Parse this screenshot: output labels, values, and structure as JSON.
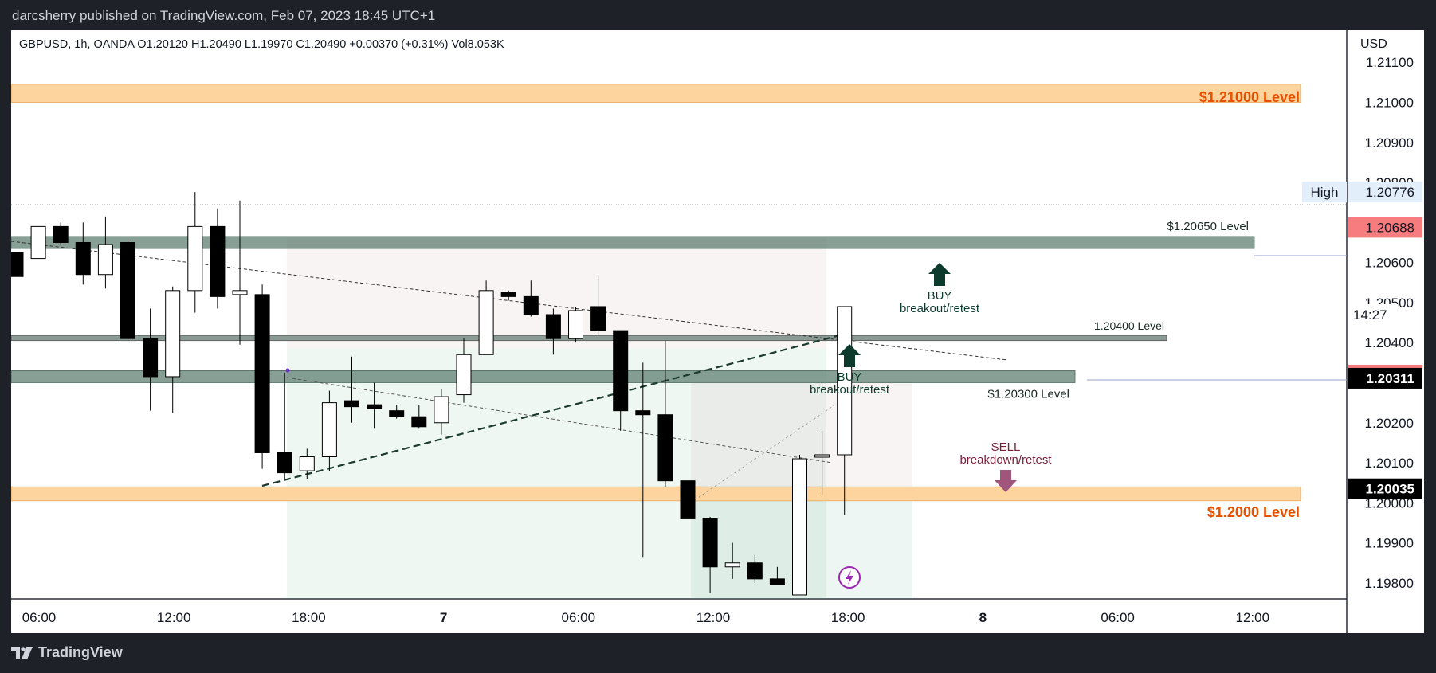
{
  "header": {
    "publisher_line": "darcsherry published on TradingView.com, Feb 07, 2023 18:45 UTC+1"
  },
  "footer": {
    "brand": "TradingView"
  },
  "colors": {
    "bull_candle": "#ffffff",
    "bear_candle": "#000000",
    "orange_zone": "#fdd49e",
    "green_zone": "#5f7f72",
    "buy_arrow": "#0c3b2e",
    "sell_arrow": "#a0557b",
    "orange_label": "#e65100",
    "high_line": "#9aa0a6",
    "price_red": "#f77c80"
  },
  "chart_data": {
    "type": "candlestick",
    "symbol_line": "GBPUSD, 1h, OANDA  O1.20120  H1.20490  L1.19970  C1.20490  +0.00370 (+0.31%)  Vol8.053K",
    "currency": "USD",
    "y_range": [
      1.1976,
      1.2118
    ],
    "y_ticks": [
      "1.21100",
      "1.21000",
      "1.20900",
      "1.20800",
      "1.20600",
      "1.20500",
      "1.20400",
      "1.20200",
      "1.20100",
      "1.20000",
      "1.19900",
      "1.19800"
    ],
    "x_ticks": [
      "06:00",
      "12:00",
      "18:00",
      "7",
      "06:00",
      "12:00",
      "18:00",
      "8",
      "06:00",
      "12:00"
    ],
    "candles": [
      {
        "o": 1.20625,
        "h": 1.20625,
        "l": 1.20565,
        "c": 1.20565
      },
      {
        "o": 1.2061,
        "h": 1.2069,
        "l": 1.2061,
        "c": 1.2069
      },
      {
        "o": 1.2069,
        "h": 1.207,
        "l": 1.20645,
        "c": 1.2065
      },
      {
        "o": 1.2065,
        "h": 1.207,
        "l": 1.20545,
        "c": 1.2057
      },
      {
        "o": 1.2057,
        "h": 1.20715,
        "l": 1.20535,
        "c": 1.20645
      },
      {
        "o": 1.2065,
        "h": 1.2066,
        "l": 1.204,
        "c": 1.2041
      },
      {
        "o": 1.2041,
        "h": 1.20485,
        "l": 1.2023,
        "c": 1.20315
      },
      {
        "o": 1.20315,
        "h": 1.2054,
        "l": 1.20225,
        "c": 1.2053
      },
      {
        "o": 1.2053,
        "h": 1.20776,
        "l": 1.20475,
        "c": 1.2069
      },
      {
        "o": 1.2069,
        "h": 1.20735,
        "l": 1.20485,
        "c": 1.20515
      },
      {
        "o": 1.2052,
        "h": 1.20755,
        "l": 1.20395,
        "c": 1.2053
      },
      {
        "o": 1.2052,
        "h": 1.20545,
        "l": 1.20085,
        "c": 1.20125
      },
      {
        "o": 1.20125,
        "h": 1.20325,
        "l": 1.2006,
        "c": 1.20075
      },
      {
        "o": 1.2008,
        "h": 1.20135,
        "l": 1.2006,
        "c": 1.20115
      },
      {
        "o": 1.20115,
        "h": 1.2028,
        "l": 1.2008,
        "c": 1.2025
      },
      {
        "o": 1.20255,
        "h": 1.20365,
        "l": 1.202,
        "c": 1.2024
      },
      {
        "o": 1.20245,
        "h": 1.203,
        "l": 1.20185,
        "c": 1.20235
      },
      {
        "o": 1.2023,
        "h": 1.20245,
        "l": 1.2021,
        "c": 1.20215
      },
      {
        "o": 1.20215,
        "h": 1.20245,
        "l": 1.20185,
        "c": 1.2019
      },
      {
        "o": 1.202,
        "h": 1.20285,
        "l": 1.2017,
        "c": 1.20265
      },
      {
        "o": 1.2027,
        "h": 1.2041,
        "l": 1.2025,
        "c": 1.2037
      },
      {
        "o": 1.2037,
        "h": 1.20555,
        "l": 1.2037,
        "c": 1.2053
      },
      {
        "o": 1.20525,
        "h": 1.2053,
        "l": 1.20505,
        "c": 1.20515
      },
      {
        "o": 1.20515,
        "h": 1.20555,
        "l": 1.20465,
        "c": 1.2047
      },
      {
        "o": 1.2047,
        "h": 1.20485,
        "l": 1.2037,
        "c": 1.2041
      },
      {
        "o": 1.2041,
        "h": 1.2049,
        "l": 1.204,
        "c": 1.2048
      },
      {
        "o": 1.2049,
        "h": 1.20565,
        "l": 1.2042,
        "c": 1.2043
      },
      {
        "o": 1.2043,
        "h": 1.2043,
        "l": 1.2018,
        "c": 1.2023
      },
      {
        "o": 1.2023,
        "h": 1.2035,
        "l": 1.19865,
        "c": 1.2022
      },
      {
        "o": 1.2022,
        "h": 1.20405,
        "l": 1.2004,
        "c": 1.20055
      },
      {
        "o": 1.20055,
        "h": 1.2005,
        "l": 1.1996,
        "c": 1.1996
      },
      {
        "o": 1.1996,
        "h": 1.19965,
        "l": 1.19775,
        "c": 1.1984
      },
      {
        "o": 1.1984,
        "h": 1.199,
        "l": 1.1981,
        "c": 1.1985
      },
      {
        "o": 1.1985,
        "h": 1.1987,
        "l": 1.198,
        "c": 1.1981
      },
      {
        "o": 1.1981,
        "h": 1.1984,
        "l": 1.19795,
        "c": 1.19795
      },
      {
        "o": 1.1977,
        "h": 1.2012,
        "l": 1.1977,
        "c": 1.2011
      },
      {
        "o": 1.2012,
        "h": 1.2018,
        "l": 1.2002,
        "c": 1.2012
      },
      {
        "o": 1.2012,
        "h": 1.2049,
        "l": 1.1997,
        "c": 1.2049
      }
    ],
    "levels": [
      {
        "label": "$1.21000 Level",
        "kind": "orange-zone",
        "from": 1.21045,
        "to": 1.21
      },
      {
        "label": "$1.20650 Level",
        "kind": "green-zone",
        "from": 1.20665,
        "to": 1.20635
      },
      {
        "label": "1.20400 Level",
        "kind": "green-thin",
        "from": 1.20418,
        "to": 1.20405
      },
      {
        "label": "$1.20300 Level",
        "kind": "green-zone",
        "from": 1.2033,
        "to": 1.203
      },
      {
        "label": "$1.2000 Level",
        "kind": "orange-zone",
        "from": 1.2004,
        "to": 1.20005
      }
    ],
    "annotations": [
      {
        "type": "buy",
        "line1": "BUY",
        "line2": "breakout/retest"
      },
      {
        "type": "buy",
        "line1": "BUY",
        "line2": "breakout/retest"
      },
      {
        "type": "sell",
        "line1": "SELL",
        "line2": "breakdown/retest"
      }
    ],
    "axis_tags": [
      {
        "text": "High",
        "value": "1.20776"
      },
      {
        "text": "",
        "value": "1.20688"
      },
      {
        "text": "14:27",
        "value": ""
      },
      {
        "text": "",
        "value": "1.20319"
      },
      {
        "text": "",
        "value": "1.20311"
      },
      {
        "text": "",
        "value": "1.20035"
      }
    ]
  }
}
